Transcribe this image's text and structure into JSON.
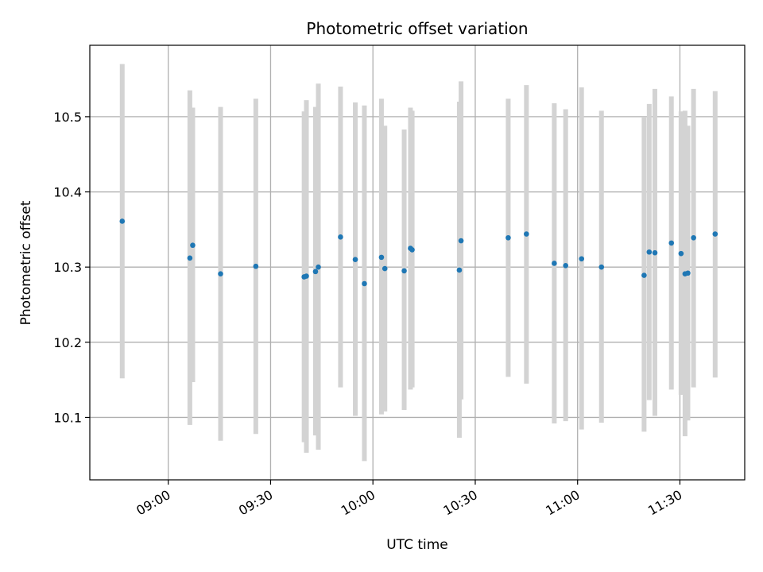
{
  "chart_data": {
    "type": "scatter",
    "title": "Photometric offset variation",
    "xlabel": "UTC time",
    "ylabel": "Photometric offset",
    "x_unit": "UTC time (HH:MM)",
    "xlim": [
      "08:37",
      "11:49"
    ],
    "ylim": [
      10.017,
      10.595
    ],
    "x_ticks": [
      "09:00",
      "09:30",
      "10:00",
      "10:30",
      "11:00",
      "11:30"
    ],
    "y_ticks": [
      10.1,
      10.2,
      10.3,
      10.4,
      10.5
    ],
    "grid": true,
    "errorbar_color": "#d3d3d3",
    "marker_color": "#1f77b4",
    "series": [
      {
        "points": [
          {
            "x": "08:46:30",
            "y": 10.361,
            "ylo": 10.152,
            "yhi": 10.57
          },
          {
            "x": "09:06:20",
            "y": 10.312,
            "ylo": 10.09,
            "yhi": 10.535
          },
          {
            "x": "09:07:10",
            "y": 10.329,
            "ylo": 10.147,
            "yhi": 10.512
          },
          {
            "x": "09:15:20",
            "y": 10.291,
            "ylo": 10.069,
            "yhi": 10.513
          },
          {
            "x": "09:25:40",
            "y": 10.301,
            "ylo": 10.078,
            "yhi": 10.524
          },
          {
            "x": "09:39:50",
            "y": 10.287,
            "ylo": 10.067,
            "yhi": 10.507
          },
          {
            "x": "09:40:30",
            "y": 10.288,
            "ylo": 10.053,
            "yhi": 10.522
          },
          {
            "x": "09:43:10",
            "y": 10.294,
            "ylo": 10.076,
            "yhi": 10.513
          },
          {
            "x": "09:44:00",
            "y": 10.3,
            "ylo": 10.057,
            "yhi": 10.544
          },
          {
            "x": "09:50:30",
            "y": 10.34,
            "ylo": 10.14,
            "yhi": 10.54
          },
          {
            "x": "09:54:50",
            "y": 10.31,
            "ylo": 10.102,
            "yhi": 10.519
          },
          {
            "x": "09:57:30",
            "y": 10.278,
            "ylo": 10.042,
            "yhi": 10.515
          },
          {
            "x": "10:02:30",
            "y": 10.313,
            "ylo": 10.104,
            "yhi": 10.524
          },
          {
            "x": "10:03:30",
            "y": 10.298,
            "ylo": 10.108,
            "yhi": 10.488
          },
          {
            "x": "10:09:10",
            "y": 10.295,
            "ylo": 10.11,
            "yhi": 10.483
          },
          {
            "x": "10:11:00",
            "y": 10.325,
            "ylo": 10.137,
            "yhi": 10.512
          },
          {
            "x": "10:11:30",
            "y": 10.323,
            "ylo": 10.14,
            "yhi": 10.508
          },
          {
            "x": "10:25:20",
            "y": 10.296,
            "ylo": 10.073,
            "yhi": 10.52
          },
          {
            "x": "10:25:50",
            "y": 10.335,
            "ylo": 10.124,
            "yhi": 10.547
          },
          {
            "x": "10:39:40",
            "y": 10.339,
            "ylo": 10.154,
            "yhi": 10.524
          },
          {
            "x": "10:45:00",
            "y": 10.344,
            "ylo": 10.145,
            "yhi": 10.542
          },
          {
            "x": "10:53:10",
            "y": 10.305,
            "ylo": 10.092,
            "yhi": 10.518
          },
          {
            "x": "10:56:30",
            "y": 10.302,
            "ylo": 10.095,
            "yhi": 10.51
          },
          {
            "x": "11:01:10",
            "y": 10.311,
            "ylo": 10.084,
            "yhi": 10.539
          },
          {
            "x": "11:07:00",
            "y": 10.3,
            "ylo": 10.093,
            "yhi": 10.508
          },
          {
            "x": "11:19:30",
            "y": 10.289,
            "ylo": 10.081,
            "yhi": 10.5
          },
          {
            "x": "11:21:00",
            "y": 10.32,
            "ylo": 10.123,
            "yhi": 10.517
          },
          {
            "x": "11:22:40",
            "y": 10.319,
            "ylo": 10.102,
            "yhi": 10.537
          },
          {
            "x": "11:27:30",
            "y": 10.332,
            "ylo": 10.137,
            "yhi": 10.527
          },
          {
            "x": "11:30:20",
            "y": 10.318,
            "ylo": 10.13,
            "yhi": 10.507
          },
          {
            "x": "11:31:30",
            "y": 10.291,
            "ylo": 10.075,
            "yhi": 10.508
          },
          {
            "x": "11:32:20",
            "y": 10.292,
            "ylo": 10.096,
            "yhi": 10.488
          },
          {
            "x": "11:34:00",
            "y": 10.339,
            "ylo": 10.14,
            "yhi": 10.537
          },
          {
            "x": "11:40:20",
            "y": 10.344,
            "ylo": 10.153,
            "yhi": 10.534
          }
        ]
      }
    ]
  }
}
